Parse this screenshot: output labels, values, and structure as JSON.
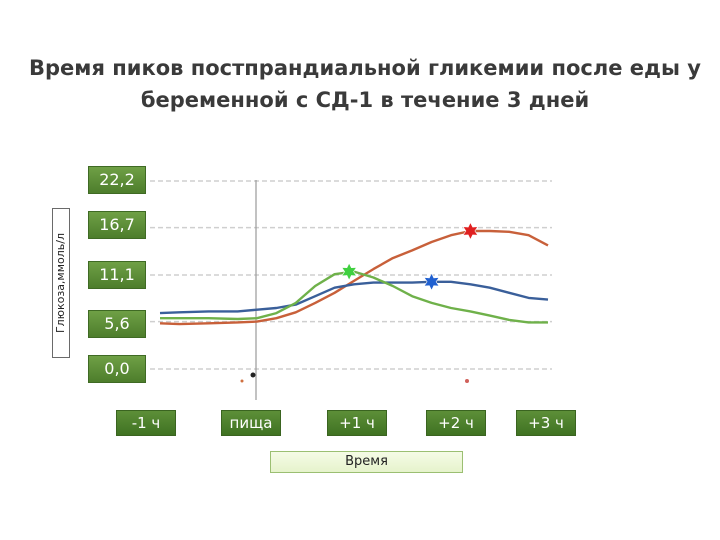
{
  "title": "Время пиков постпрандиальной гликемии после еды у беременной с СД-1 в течение 3 дней",
  "chart_data": {
    "type": "line",
    "title": "Время пиков постпрандиальной гликемии после еды у беременной с СД-1 в течение 3 дней",
    "ylabel": "Глюкоза,ммоль/л",
    "xlabel": "Время",
    "yticks": [
      "22,2",
      "16,7",
      "11,1",
      "5,6",
      "0,0"
    ],
    "ytick_values": [
      22.2,
      16.7,
      11.1,
      5.6,
      0.0
    ],
    "xticks": [
      "-1 ч",
      "пища",
      "+1 ч",
      "+2 ч",
      "+3 ч"
    ],
    "xtick_hours": [
      -1,
      0,
      1,
      2,
      3
    ],
    "ylim": [
      0,
      22.2
    ],
    "xlim": [
      -1,
      3
    ],
    "grid": true,
    "series": [
      {
        "color": "#c8603a",
        "x": [
          -1,
          -0.8,
          -0.5,
          -0.2,
          0,
          0.2,
          0.4,
          0.6,
          0.8,
          1.0,
          1.2,
          1.4,
          1.6,
          1.8,
          2.0,
          2.2,
          2.4,
          2.6,
          2.8,
          3.0
        ],
        "y": [
          5.4,
          5.3,
          5.4,
          5.5,
          5.6,
          6.0,
          6.7,
          7.8,
          9.0,
          10.4,
          11.8,
          13.1,
          14.0,
          15.0,
          15.8,
          16.3,
          16.3,
          16.2,
          15.8,
          14.6
        ],
        "peak": {
          "x": 2.2,
          "y": 16.3,
          "color": "#e02020"
        }
      },
      {
        "color": "#3a5f9a",
        "x": [
          -1,
          -0.8,
          -0.5,
          -0.2,
          0,
          0.2,
          0.4,
          0.6,
          0.8,
          1.0,
          1.2,
          1.4,
          1.6,
          1.8,
          2.0,
          2.2,
          2.4,
          2.6,
          2.8,
          3.0
        ],
        "y": [
          6.6,
          6.7,
          6.8,
          6.8,
          7.0,
          7.2,
          7.6,
          8.6,
          9.6,
          10.0,
          10.2,
          10.2,
          10.2,
          10.3,
          10.3,
          10.0,
          9.6,
          9.0,
          8.4,
          8.2
        ],
        "peak": {
          "x": 1.8,
          "y": 10.3,
          "color": "#2060d0"
        }
      },
      {
        "color": "#6fb14a",
        "x": [
          -1,
          -0.8,
          -0.5,
          -0.2,
          0,
          0.2,
          0.4,
          0.6,
          0.8,
          1.0,
          1.2,
          1.4,
          1.6,
          1.8,
          2.0,
          2.2,
          2.4,
          2.6,
          2.8,
          3.0
        ],
        "y": [
          6.0,
          6.0,
          6.0,
          5.9,
          6.0,
          6.6,
          7.8,
          9.8,
          11.2,
          11.5,
          10.8,
          9.8,
          8.6,
          7.8,
          7.2,
          6.8,
          6.3,
          5.8,
          5.5,
          5.5
        ],
        "peak": {
          "x": 0.95,
          "y": 11.5,
          "color": "#40d040"
        }
      }
    ]
  }
}
